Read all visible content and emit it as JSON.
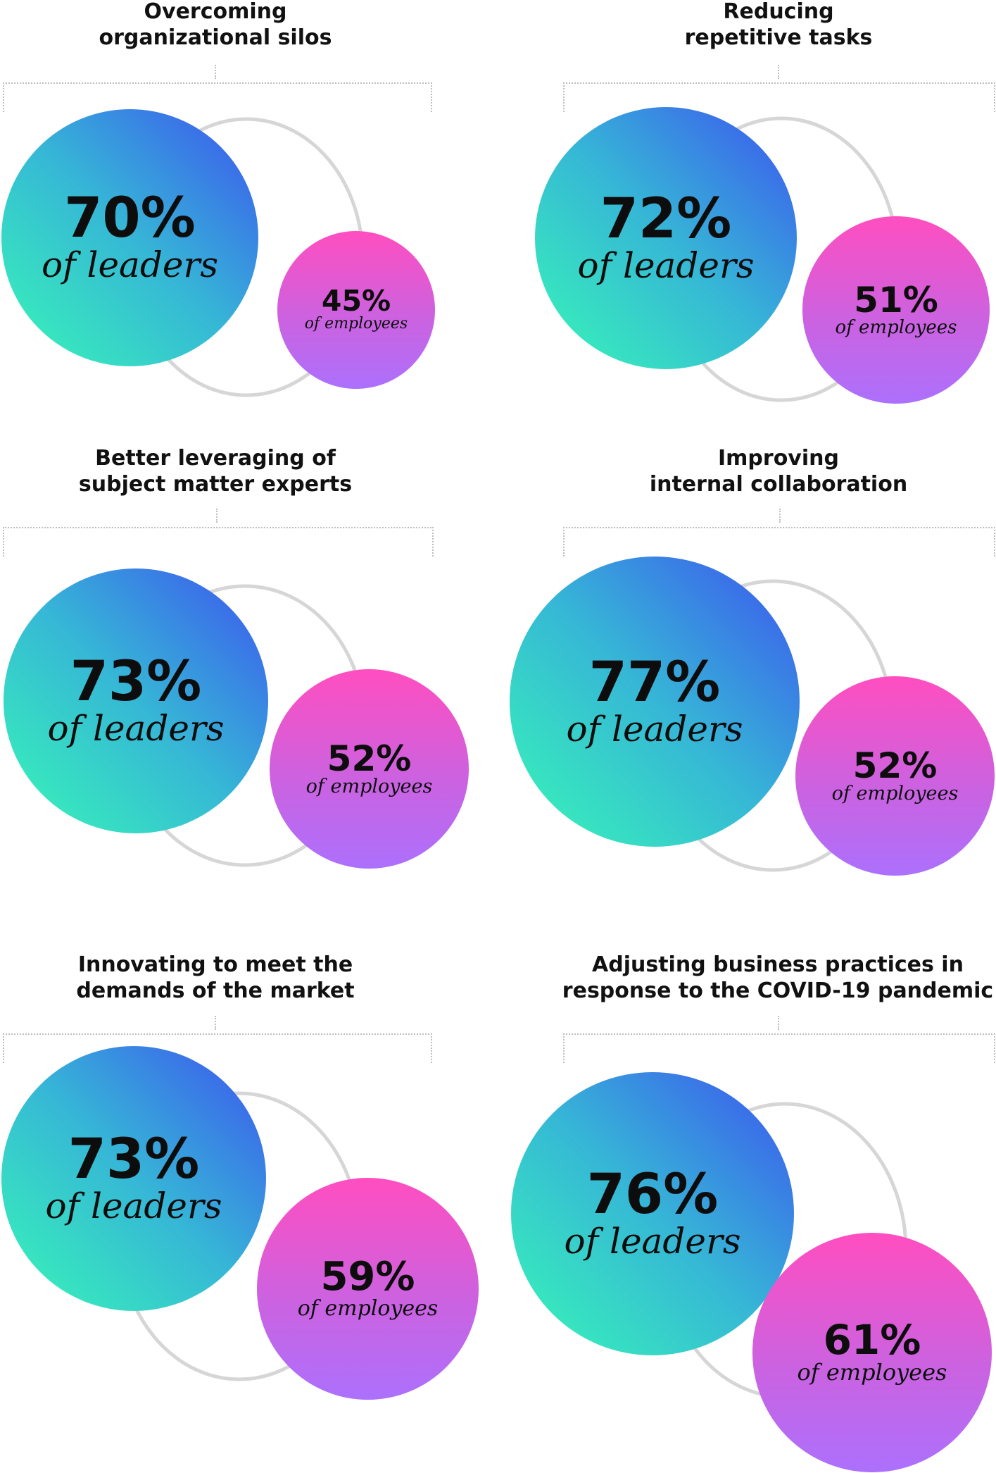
{
  "panels": [
    {
      "title_lines": [
        "Overcoming",
        "organizational silos"
      ],
      "leaders": "70%",
      "leaders_label": "of leaders",
      "employees": "45%",
      "employees_label": "of employees"
    },
    {
      "title_lines": [
        "Reducing",
        "repetitive tasks"
      ],
      "leaders": "72%",
      "leaders_label": "of leaders",
      "employees": "51%",
      "employees_label": "of employees"
    },
    {
      "title_lines": [
        "Better leveraging of",
        "subject matter experts"
      ],
      "leaders": "73%",
      "leaders_label": "of leaders",
      "employees": "52%",
      "employees_label": "of employees"
    },
    {
      "title_lines": [
        "Improving",
        "internal collaboration"
      ],
      "leaders": "77%",
      "leaders_label": "of leaders",
      "employees": "52%",
      "employees_label": "of employees"
    },
    {
      "title_lines": [
        "Innovating to meet the",
        "demands of the market"
      ],
      "leaders": "73%",
      "leaders_label": "of leaders",
      "employees": "59%",
      "employees_label": "of employees"
    },
    {
      "title_lines": [
        "Adjusting business practices in",
        "response to the COVID-19 pandemic"
      ],
      "leaders": "76%",
      "leaders_label": "of leaders",
      "employees": "61%",
      "employees_label": "of employees"
    }
  ],
  "colors": {
    "leaders_gradient": [
      "#3c52f0",
      "#36b7d6",
      "#38f8b6"
    ],
    "employees_gradient": [
      "#ff4ec0",
      "#cc62e0",
      "#ac70fc"
    ],
    "ring": "#d6d6d6",
    "bracket": "#bdbdbd"
  }
}
